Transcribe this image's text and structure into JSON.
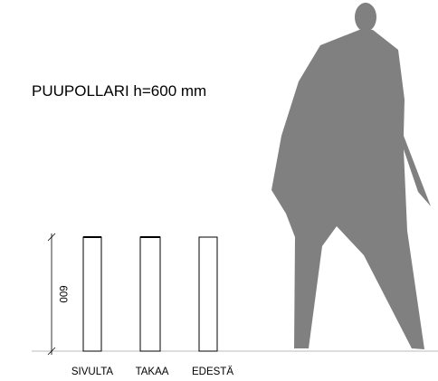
{
  "title": "PUUPOLLARI h=600 mm",
  "dimension": "600",
  "views": [
    "SIVULTA",
    "TAKAA",
    "EDESTÄ"
  ]
}
